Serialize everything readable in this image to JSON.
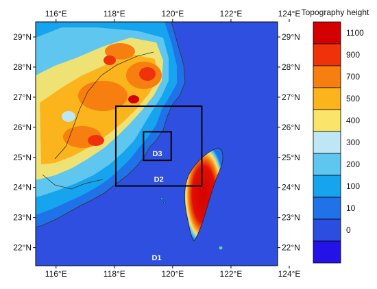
{
  "map": {
    "lon_ticks": [
      "116°E",
      "118°E",
      "120°E",
      "122°E",
      "124°E"
    ],
    "lat_ticks": [
      "29°N",
      "28°N",
      "27°N",
      "26°N",
      "25°N",
      "24°N",
      "23°N",
      "22°N"
    ],
    "extent": {
      "lon": [
        115.3,
        123.6
      ],
      "lat": [
        21.4,
        29.5
      ]
    },
    "ocean_color": "#2e4fe0",
    "domains": [
      {
        "label": "D1",
        "lon": [
          115.3,
          123.6
        ],
        "lat": [
          21.4,
          29.5
        ]
      },
      {
        "label": "D2",
        "lon": [
          118.05,
          121.0
        ],
        "lat": [
          24.05,
          26.7
        ]
      },
      {
        "label": "D3",
        "lon": [
          119.0,
          119.95
        ],
        "lat": [
          24.9,
          25.85
        ]
      }
    ]
  },
  "legend": {
    "title": "Topography height",
    "levels": [
      {
        "label": "1100",
        "color": "#d40000"
      },
      {
        "label": "900",
        "color": "#f0320a"
      },
      {
        "label": "700",
        "color": "#f77f0f"
      },
      {
        "label": "500",
        "color": "#fbb41c"
      },
      {
        "label": "400",
        "color": "#fbe46a"
      },
      {
        "label": "300",
        "color": "#bfe6f4"
      },
      {
        "label": "200",
        "color": "#5ec6ef"
      },
      {
        "label": "100",
        "color": "#16a4ee"
      },
      {
        "label": "10",
        "color": "#1f72e8"
      },
      {
        "label": "0",
        "color": "#2b4de0"
      },
      {
        "label": "",
        "color": "#2412e6"
      }
    ]
  }
}
